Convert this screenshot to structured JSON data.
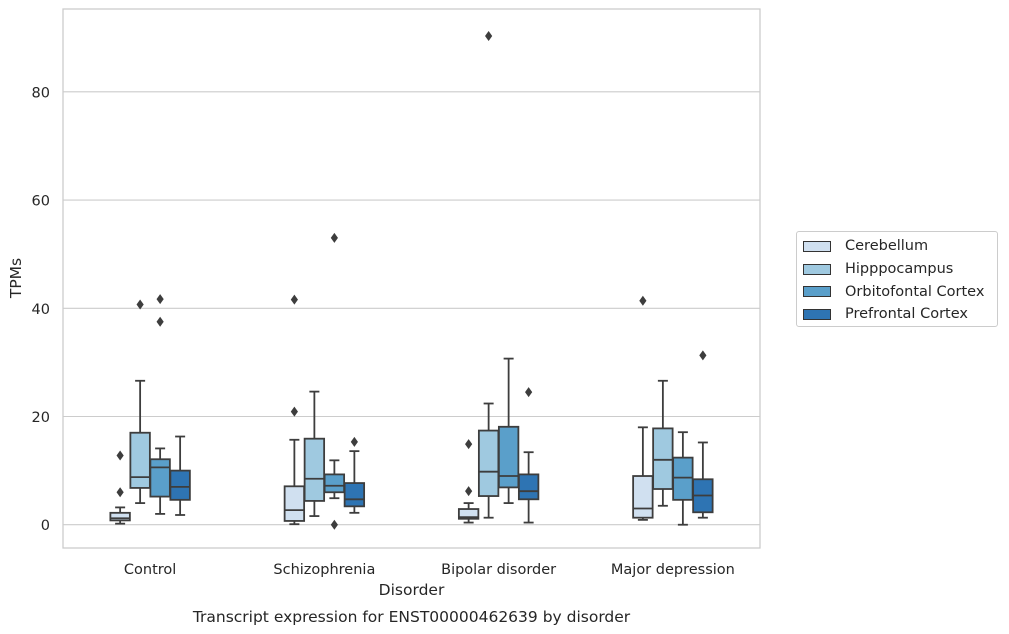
{
  "chart_data": {
    "type": "box",
    "categories": [
      "Control",
      "Schizophrenia",
      "Bipolar disorder",
      "Major depression"
    ],
    "xlabel": "Disorder",
    "ylabel": "TPMs",
    "caption": "Transcript expression for ENST00000462639 by disorder",
    "ylim": [
      -4.3,
      95.3
    ],
    "yticks": [
      0,
      20,
      40,
      60,
      80
    ],
    "grid": "horizontal",
    "legend_position": "right",
    "series": [
      {
        "name": "Cerebellum",
        "color": "#d0e0f0",
        "boxes": [
          {
            "whisker_low": 0.2,
            "q1": 0.8,
            "median": 1.2,
            "q3": 2.2,
            "whisker_high": 3.2,
            "outliers": [
              6.0,
              12.8
            ]
          },
          {
            "whisker_low": 0.1,
            "q1": 0.7,
            "median": 2.7,
            "q3": 7.1,
            "whisker_high": 15.7,
            "outliers": [
              20.9,
              41.6
            ]
          },
          {
            "whisker_low": 0.4,
            "q1": 1.1,
            "median": 1.4,
            "q3": 2.9,
            "whisker_high": 4.0,
            "outliers": [
              6.2,
              14.9
            ]
          },
          {
            "whisker_low": 0.9,
            "q1": 1.3,
            "median": 3.0,
            "q3": 9.0,
            "whisker_high": 18.0,
            "outliers": [
              41.4
            ]
          }
        ]
      },
      {
        "name": "Hipppocampus",
        "color": "#9fc9e0",
        "boxes": [
          {
            "whisker_low": 4.0,
            "q1": 6.8,
            "median": 8.8,
            "q3": 17.0,
            "whisker_high": 26.6,
            "outliers": [
              40.7
            ]
          },
          {
            "whisker_low": 1.6,
            "q1": 4.4,
            "median": 8.5,
            "q3": 15.9,
            "whisker_high": 24.6,
            "outliers": []
          },
          {
            "whisker_low": 1.3,
            "q1": 5.3,
            "median": 9.8,
            "q3": 17.4,
            "whisker_high": 22.4,
            "outliers": [
              90.3
            ]
          },
          {
            "whisker_low": 3.5,
            "q1": 6.6,
            "median": 12.0,
            "q3": 17.8,
            "whisker_high": 26.6,
            "outliers": []
          }
        ]
      },
      {
        "name": "Orbitofontal Cortex",
        "color": "#5a9fca",
        "boxes": [
          {
            "whisker_low": 2.0,
            "q1": 5.2,
            "median": 10.6,
            "q3": 12.1,
            "whisker_high": 14.1,
            "outliers": [
              37.5,
              41.7
            ]
          },
          {
            "whisker_low": 4.9,
            "q1": 6.0,
            "median": 7.2,
            "q3": 9.3,
            "whisker_high": 11.9,
            "outliers": [
              0.0,
              53.0
            ]
          },
          {
            "whisker_low": 4.0,
            "q1": 6.9,
            "median": 9.0,
            "q3": 18.1,
            "whisker_high": 30.7,
            "outliers": []
          },
          {
            "whisker_low": 0.0,
            "q1": 4.6,
            "median": 8.7,
            "q3": 12.4,
            "whisker_high": 17.1,
            "outliers": []
          }
        ]
      },
      {
        "name": "Prefrontal Cortex",
        "color": "#2e74b3",
        "boxes": [
          {
            "whisker_low": 1.8,
            "q1": 4.6,
            "median": 7.0,
            "q3": 10.0,
            "whisker_high": 16.3,
            "outliers": []
          },
          {
            "whisker_low": 2.2,
            "q1": 3.4,
            "median": 4.7,
            "q3": 7.7,
            "whisker_high": 13.6,
            "outliers": [
              15.3
            ]
          },
          {
            "whisker_low": 0.4,
            "q1": 4.7,
            "median": 6.2,
            "q3": 9.3,
            "whisker_high": 13.4,
            "outliers": [
              24.5
            ]
          },
          {
            "whisker_low": 1.3,
            "q1": 2.3,
            "median": 5.4,
            "q3": 8.4,
            "whisker_high": 15.2,
            "outliers": [
              31.3
            ]
          }
        ]
      }
    ]
  }
}
